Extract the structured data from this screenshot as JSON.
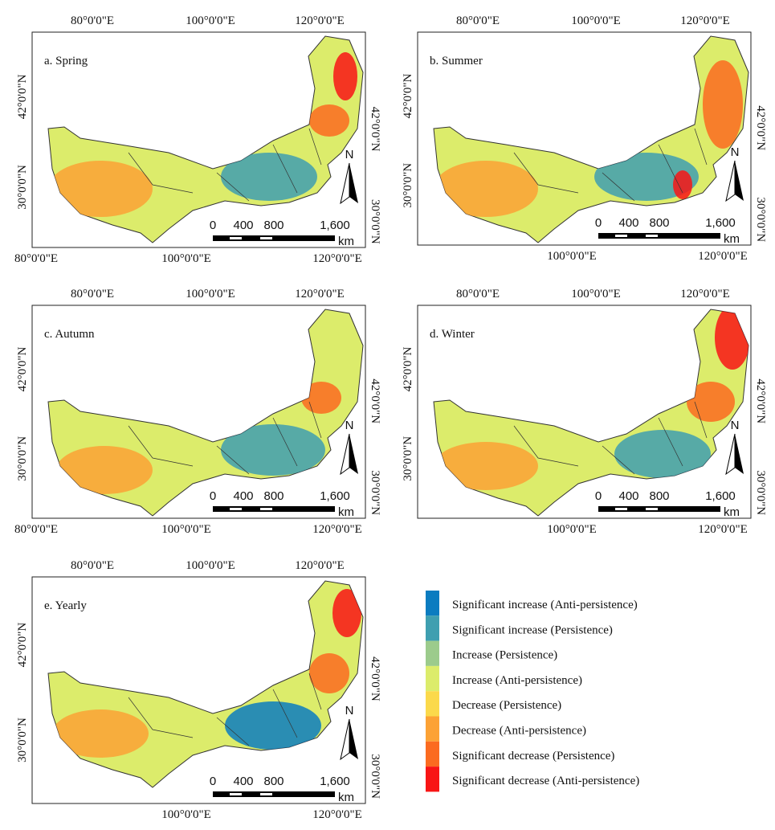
{
  "panels": [
    {
      "title": "a. Spring",
      "top_labels": [
        "80°0'0\"E",
        "100°0'0\"E",
        "120°0'0\"E"
      ],
      "bottom_labels": [
        "80°0'0\"E",
        "100°0'0\"E",
        "120°0'0\"E"
      ],
      "left_labels": [
        "42°0'0\"N",
        "30°0'0\"N"
      ],
      "right_labels": [
        "42°0'0\"N",
        "30°0'0\"N"
      ],
      "scale_labels": [
        "0",
        "400",
        "800",
        "1,600"
      ],
      "scale_unit": "km",
      "north": "N"
    },
    {
      "title": "b. Summer",
      "top_labels": [
        "80°0'0\"E",
        "100°0'0\"E",
        "120°0'0\"E"
      ],
      "bottom_labels": [
        "100°0'0\"E",
        "120°0'0\"E"
      ],
      "left_labels": [
        "42°0'0\"N",
        "30°0'0\"N"
      ],
      "right_labels": [
        "42°0'0\"N",
        "30°0'0\"N"
      ],
      "scale_labels": [
        "0",
        "400",
        "800",
        "1,600"
      ],
      "scale_unit": "km",
      "north": "N"
    },
    {
      "title": "c. Autumn",
      "top_labels": [
        "80°0'0\"E",
        "100°0'0\"E",
        "120°0'0\"E"
      ],
      "bottom_labels": [
        "80°0'0\"E",
        "100°0'0\"E",
        "120°0'0\"E"
      ],
      "left_labels": [
        "42°0'0\"N",
        "30°0'0\"N"
      ],
      "right_labels": [
        "42°0'0\"N",
        "30°0'0\"N"
      ],
      "scale_labels": [
        "0",
        "400",
        "800",
        "1,600"
      ],
      "scale_unit": "km",
      "north": "N"
    },
    {
      "title": "d. Winter",
      "top_labels": [
        "80°0'0\"E",
        "100°0'0\"E",
        "120°0'0\"E"
      ],
      "bottom_labels": [
        "100°0'0\"E",
        "120°0'0\"E"
      ],
      "left_labels": [
        "42°0'0\"N",
        "30°0'0\"N"
      ],
      "right_labels": [
        "42°0'0\"N",
        "30°0'0\"N"
      ],
      "scale_labels": [
        "0",
        "400",
        "800",
        "1,600"
      ],
      "scale_unit": "km",
      "north": "N"
    },
    {
      "title": "e. Yearly",
      "top_labels": [
        "80°0'0\"E",
        "100°0'0\"E",
        "120°0'0\"E"
      ],
      "bottom_labels": [
        "100°0'0\"E",
        "120°0'0\"E"
      ],
      "left_labels": [
        "42°0'0\"N",
        "30°0'0\"N"
      ],
      "right_labels": [
        "42°0'0\"N",
        "30°0'0\"N"
      ],
      "scale_labels": [
        "0",
        "400",
        "800",
        "1,600"
      ],
      "scale_unit": "km",
      "north": "N"
    }
  ],
  "legend": [
    {
      "name": "Significant increase (Anti-persistence)",
      "color": "#0b7cc0"
    },
    {
      "name": "Significant increase (Persistence)",
      "color": "#3f9fb0"
    },
    {
      "name": "Increase (Persistence)",
      "color": "#9ccb8c"
    },
    {
      "name": "Increase (Anti-persistence)",
      "color": "#dcec6b"
    },
    {
      "name": "Decrease (Persistence)",
      "color": "#fbd94b"
    },
    {
      "name": "Decrease (Anti-persistence)",
      "color": "#fca235"
    },
    {
      "name": "Significant decrease (Persistence)",
      "color": "#fb6b20"
    },
    {
      "name": "Significant decrease (Anti-persistence)",
      "color": "#f81515"
    }
  ]
}
